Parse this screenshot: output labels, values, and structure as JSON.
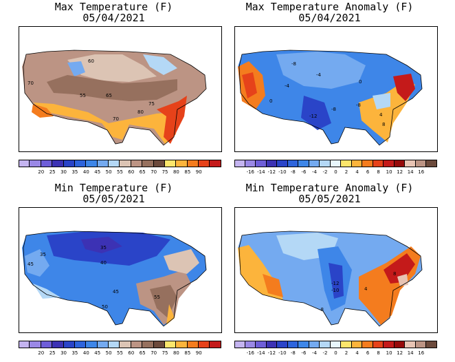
{
  "colors": {
    "temp_scale": [
      "#c4b4f0",
      "#9a88e6",
      "#6e5ed8",
      "#3c32b4",
      "#2a44c8",
      "#2e64dc",
      "#3e86e8",
      "#74aaf0",
      "#b4d8f6",
      "#dcc4b4",
      "#bc9484",
      "#96705e",
      "#6c4a3c",
      "#fce66c",
      "#fcb43c",
      "#f47c1e",
      "#e6421a",
      "#c41a1a"
    ],
    "anom_scale": [
      "#c4b4f0",
      "#9a88e6",
      "#6e5ed8",
      "#3c32b4",
      "#2a44c8",
      "#2e64dc",
      "#3e86e8",
      "#74aaf0",
      "#b4d8f6",
      "#e8f6fc",
      "#fce66c",
      "#fcb43c",
      "#f47c1e",
      "#e6421a",
      "#c41a1a",
      "#960a0a",
      "#e8c4b4",
      "#bc9484",
      "#6c4a3c"
    ]
  },
  "panels": [
    {
      "title_line1": "Max Temperature (F)",
      "title_line2": "05/04/2021",
      "scale": "temp_scale",
      "tick_labels": [
        "20",
        "25",
        "30",
        "35",
        "40",
        "45",
        "50",
        "55",
        "60",
        "65",
        "70",
        "75",
        "80",
        "85",
        "90"
      ],
      "contour_labels": [
        "60",
        "70",
        "55",
        "65",
        "75",
        "80",
        "70"
      ]
    },
    {
      "title_line1": "Max Temperature Anomaly (F)",
      "title_line2": "05/04/2021",
      "scale": "anom_scale",
      "tick_labels": [
        "-16",
        "-14",
        "-12",
        "-10",
        "-8",
        "-6",
        "-4",
        "-2",
        "0",
        "2",
        "4",
        "6",
        "8",
        "10",
        "12",
        "14",
        "16"
      ],
      "contour_labels": [
        "-8",
        "-4",
        "-4",
        "-12",
        "-8",
        "-8",
        "0",
        "4",
        "8",
        "0"
      ]
    },
    {
      "title_line1": "Min Temperature (F)",
      "title_line2": "05/05/2021",
      "scale": "temp_scale",
      "tick_labels": [
        "20",
        "25",
        "30",
        "35",
        "40",
        "45",
        "50",
        "55",
        "60",
        "65",
        "70",
        "75",
        "80",
        "85",
        "90"
      ],
      "contour_labels": [
        "45",
        "35",
        "35",
        "40",
        "45",
        "50",
        "55"
      ]
    },
    {
      "title_line1": "Min Temperature Anomaly (F)",
      "title_line2": "05/05/2021",
      "scale": "anom_scale",
      "tick_labels": [
        "-16",
        "-14",
        "-12",
        "-10",
        "-8",
        "-6",
        "-4",
        "-2",
        "0",
        "2",
        "4",
        "6",
        "8",
        "10",
        "12",
        "14",
        "16"
      ],
      "contour_labels": [
        "-12",
        "-10",
        "-8",
        "4",
        "8"
      ]
    }
  ]
}
